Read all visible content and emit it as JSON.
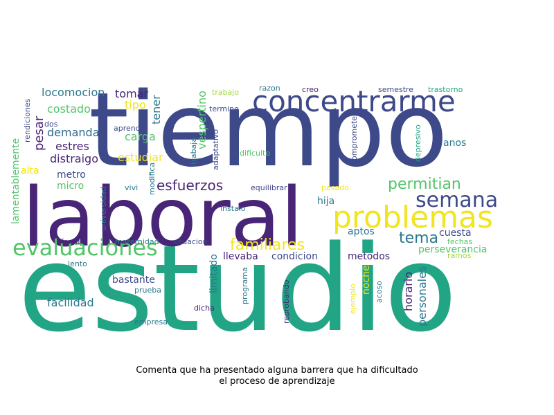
{
  "caption": {
    "line1": "Comenta que ha presentado alguna barrera que ha dificultado",
    "line2": "el proceso de aprendizaje"
  },
  "palette": {
    "navy": "#3e4989",
    "purple": "#482576",
    "teal": "#21a585",
    "green": "#52c569",
    "yellow": "#f1e51d",
    "blue": "#31688e",
    "seagreen": "#2a788e",
    "lime": "#a0da39"
  },
  "words": [
    {
      "id": "tiempo",
      "text": "tiempo"
    },
    {
      "id": "laboral",
      "text": "laboral"
    },
    {
      "id": "estudio",
      "text": "estudio"
    },
    {
      "id": "concentrarme",
      "text": "concentrarme"
    },
    {
      "id": "problemas",
      "text": "problemas"
    },
    {
      "id": "evaluaciones",
      "text": "evaluaciones"
    },
    {
      "id": "semana",
      "text": "semana"
    },
    {
      "id": "permitian",
      "text": "permitian"
    },
    {
      "id": "esfuerzos",
      "text": "esfuerzos"
    },
    {
      "id": "familiares",
      "text": "familiares"
    },
    {
      "id": "tema",
      "text": "tema"
    },
    {
      "id": "locomocion",
      "text": "locomocion"
    },
    {
      "id": "tomar",
      "text": "tomar"
    },
    {
      "id": "tipo",
      "text": "tipo"
    },
    {
      "id": "costado",
      "text": "costado"
    },
    {
      "id": "demanda",
      "text": "demanda"
    },
    {
      "id": "estres",
      "text": "estres"
    },
    {
      "id": "distraigo",
      "text": "distraigo"
    },
    {
      "id": "alta",
      "text": "alta"
    },
    {
      "id": "metro",
      "text": "metro"
    },
    {
      "id": "micro",
      "text": "micro"
    },
    {
      "id": "carga",
      "text": "carga"
    },
    {
      "id": "estudiar",
      "text": "estudiar"
    },
    {
      "id": "aprendo",
      "text": "aprendo"
    },
    {
      "id": "vivi",
      "text": "vivi"
    },
    {
      "id": "equilibrar",
      "text": "equilibrar"
    },
    {
      "id": "instalo",
      "text": "instalo"
    },
    {
      "id": "pasado",
      "text": "pasado"
    },
    {
      "id": "hija",
      "text": "hija"
    },
    {
      "id": "aptos",
      "text": "aptos"
    },
    {
      "id": "cuesta",
      "text": "cuesta"
    },
    {
      "id": "perseverancia",
      "text": "perseverancia"
    },
    {
      "id": "fechas",
      "text": "fechas"
    },
    {
      "id": "ramos",
      "text": "ramos"
    },
    {
      "id": "anos",
      "text": "anos"
    },
    {
      "id": "familia",
      "text": "familia"
    },
    {
      "id": "maternidad",
      "text": "maternidad"
    },
    {
      "id": "situacion",
      "text": "situacion"
    },
    {
      "id": "llevaba",
      "text": "llevaba"
    },
    {
      "id": "condicion",
      "text": "condicion"
    },
    {
      "id": "metodos",
      "text": "metodos"
    },
    {
      "id": "lento",
      "text": "lento"
    },
    {
      "id": "bastante",
      "text": "bastante"
    },
    {
      "id": "prueba",
      "text": "prueba"
    },
    {
      "id": "facilidad",
      "text": "facilidad"
    },
    {
      "id": "dicha",
      "text": "dicha"
    },
    {
      "id": "empresa",
      "text": "empresa"
    },
    {
      "id": "trabajo",
      "text": "trabajo"
    },
    {
      "id": "razon",
      "text": "razon"
    },
    {
      "id": "creo",
      "text": "creo"
    },
    {
      "id": "semestre",
      "text": "semestre"
    },
    {
      "id": "trastorno",
      "text": "trastorno"
    },
    {
      "id": "termine",
      "text": "termine"
    },
    {
      "id": "dificulto",
      "text": "dificulto"
    },
    {
      "id": "dos",
      "text": "dos"
    },
    {
      "id": "rendiciones",
      "text": "rendiciones"
    },
    {
      "id": "lamentablemente",
      "text": "lamentablemente"
    },
    {
      "id": "pesar",
      "text": "pesar"
    },
    {
      "id": "tener",
      "text": "tener"
    },
    {
      "id": "vespertino",
      "text": "vespertino"
    },
    {
      "id": "trabaja",
      "text": "trabaja"
    },
    {
      "id": "adaptativo",
      "text": "adaptativo"
    },
    {
      "id": "modifica",
      "text": "modifica"
    },
    {
      "id": "compromete",
      "text": "compromete"
    },
    {
      "id": "depresivo",
      "text": "depresivo"
    },
    {
      "id": "universidad",
      "text": "universidad"
    },
    {
      "id": "limitado",
      "text": "limitado"
    },
    {
      "id": "programa",
      "text": "programa"
    },
    {
      "id": "noche",
      "text": "noche"
    },
    {
      "id": "reprobando",
      "text": "reprobando"
    },
    {
      "id": "ejemplo",
      "text": "ejemplo"
    },
    {
      "id": "acoso",
      "text": "acoso"
    },
    {
      "id": "horario",
      "text": "horario"
    },
    {
      "id": "personales",
      "text": "personales"
    }
  ]
}
